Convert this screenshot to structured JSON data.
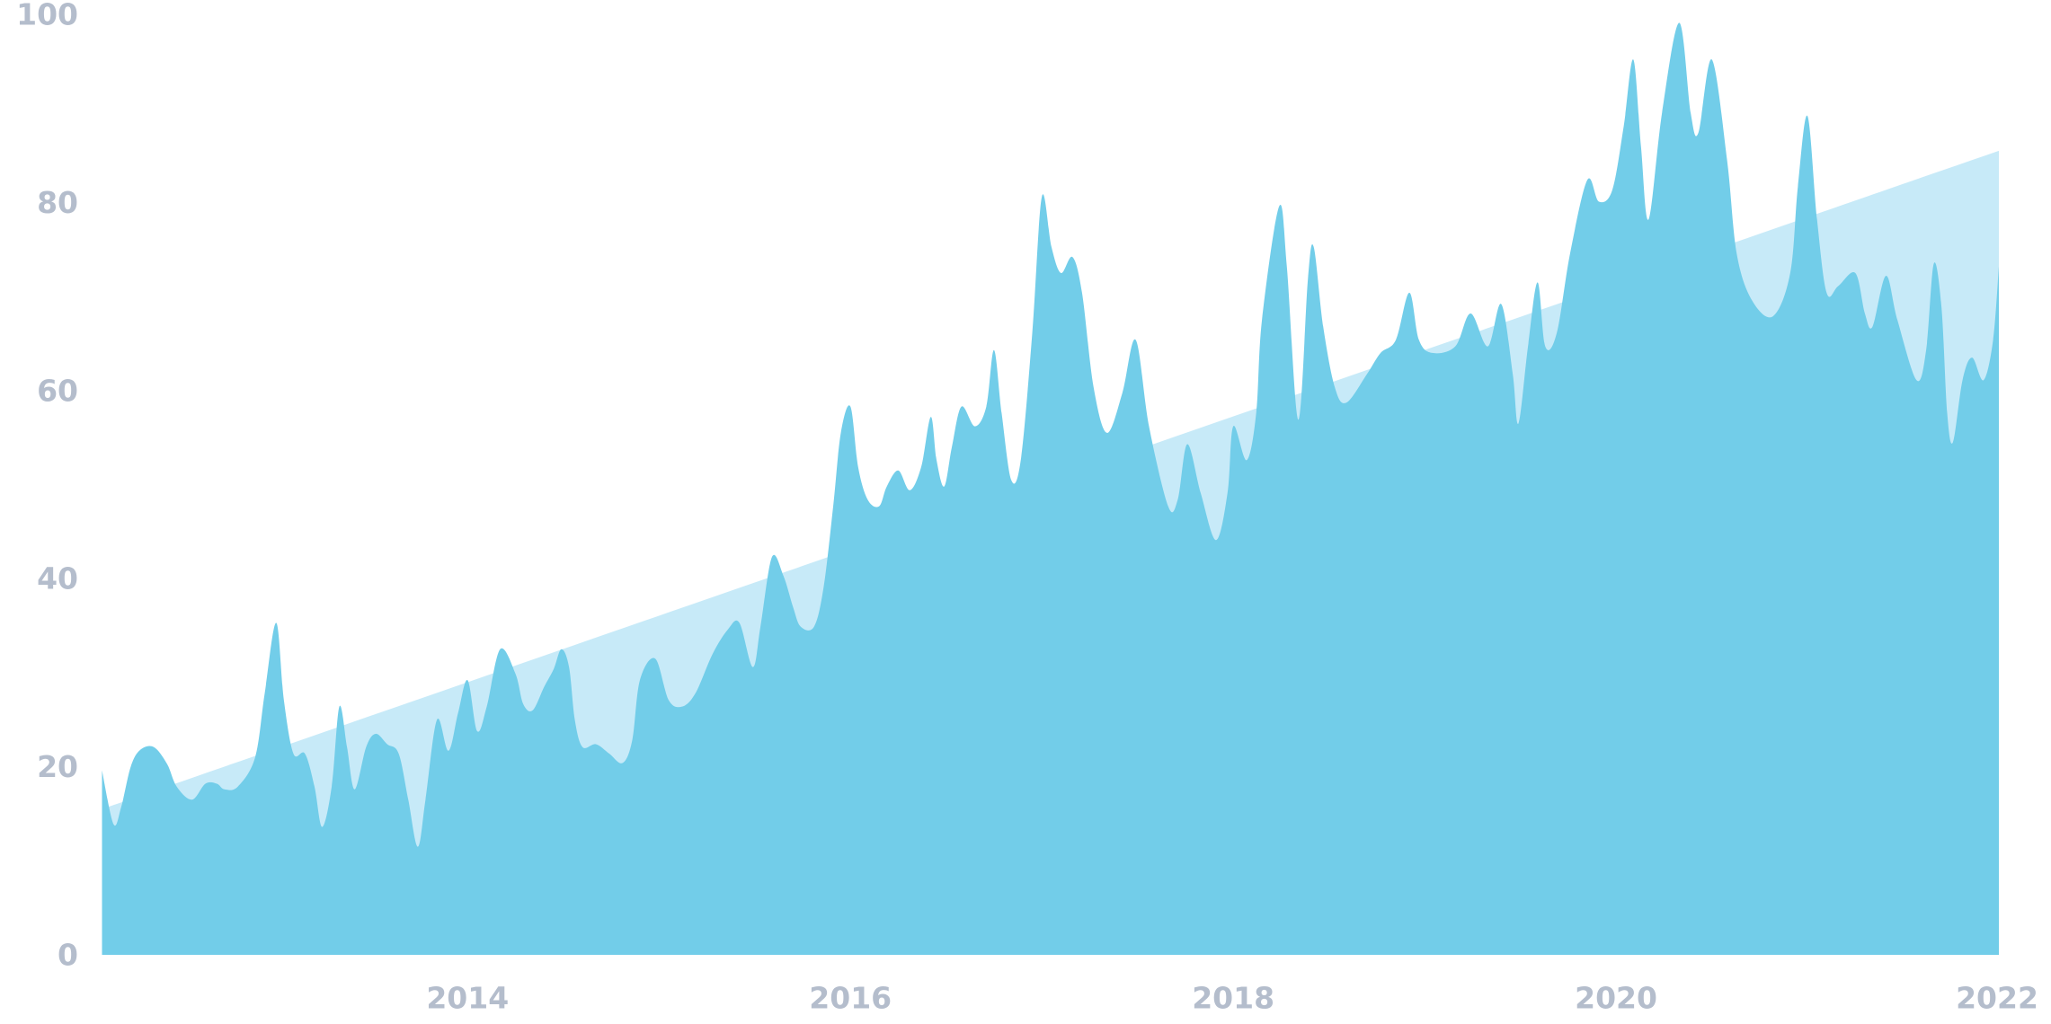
{
  "chart_data": {
    "type": "area",
    "xlim": [
      2012.09,
      2022.0
    ],
    "xticks": [
      2014,
      2016,
      2018,
      2020,
      2022
    ],
    "ylim": [
      0,
      100
    ],
    "yticks": [
      0,
      20,
      40,
      60,
      80,
      100
    ],
    "grid": false,
    "series": [
      {
        "color": "#c7eaf8",
        "x": [
          2012.09,
          2022.0
        ],
        "values": [
          15.5,
          85.5
        ]
      },
      {
        "color": "#72cde9",
        "x": [
          2012.09,
          2012.15,
          2012.19,
          2012.24,
          2012.29,
          2012.36,
          2012.43,
          2012.48,
          2012.56,
          2012.63,
          2012.69,
          2012.73,
          2012.8,
          2012.89,
          2012.94,
          2013.0,
          2013.04,
          2013.09,
          2013.15,
          2013.2,
          2013.24,
          2013.29,
          2013.33,
          2013.37,
          2013.41,
          2013.47,
          2013.52,
          2013.58,
          2013.64,
          2013.69,
          2013.74,
          2013.78,
          2013.84,
          2013.9,
          2013.95,
          2014.0,
          2014.05,
          2014.1,
          2014.17,
          2014.25,
          2014.29,
          2014.34,
          2014.4,
          2014.45,
          2014.49,
          2014.53,
          2014.56,
          2014.6,
          2014.67,
          2014.74,
          2014.81,
          2014.86,
          2014.9,
          2014.98,
          2015.05,
          2015.12,
          2015.19,
          2015.28,
          2015.36,
          2015.42,
          2015.49,
          2015.53,
          2015.59,
          2015.65,
          2015.7,
          2015.74,
          2015.81,
          2015.86,
          2015.91,
          2015.95,
          2016.0,
          2016.04,
          2016.09,
          2016.15,
          2016.19,
          2016.25,
          2016.31,
          2016.37,
          2016.42,
          2016.45,
          2016.49,
          2016.53,
          2016.58,
          2016.65,
          2016.71,
          2016.75,
          2016.79,
          2016.84,
          2016.89,
          2016.95,
          2017.0,
          2017.05,
          2017.1,
          2017.16,
          2017.21,
          2017.27,
          2017.34,
          2017.42,
          2017.49,
          2017.56,
          2017.66,
          2017.71,
          2017.76,
          2017.83,
          2017.91,
          2017.97,
          2018.0,
          2018.07,
          2018.12,
          2018.15,
          2018.24,
          2018.28,
          2018.34,
          2018.39,
          2018.42,
          2018.47,
          2018.53,
          2018.59,
          2018.7,
          2018.77,
          2018.85,
          2018.92,
          2018.97,
          2019.04,
          2019.16,
          2019.24,
          2019.33,
          2019.4,
          2019.46,
          2019.49,
          2019.54,
          2019.59,
          2019.63,
          2019.69,
          2019.76,
          2019.85,
          2019.91,
          2019.98,
          2020.04,
          2020.09,
          2020.13,
          2020.17,
          2020.24,
          2020.33,
          2020.39,
          2020.43,
          2020.5,
          2020.58,
          2020.63,
          2020.71,
          2020.82,
          2020.91,
          2020.95,
          2021.0,
          2021.05,
          2021.1,
          2021.16,
          2021.25,
          2021.3,
          2021.34,
          2021.41,
          2021.47,
          2021.57,
          2021.62,
          2021.66,
          2021.7,
          2021.73,
          2021.76,
          2021.81,
          2021.86,
          2021.92,
          2021.97,
          2022.0
        ],
        "values": [
          19.6,
          13.9,
          15.7,
          20,
          21.8,
          22.1,
          20.3,
          17.9,
          16.5,
          18.2,
          18.2,
          17.6,
          17.9,
          21,
          27.8,
          35.3,
          27.1,
          21.4,
          21.4,
          17.9,
          13.6,
          17.9,
          26.4,
          22.1,
          17.6,
          22.1,
          23.5,
          22.4,
          21.4,
          16.5,
          11.5,
          16.5,
          25,
          21.7,
          25.7,
          29.2,
          23.8,
          26.4,
          32.5,
          29.9,
          26.7,
          26,
          28.5,
          30.4,
          32.5,
          30.6,
          25,
          22.1,
          22.4,
          21.4,
          20.4,
          22.8,
          29.2,
          31.5,
          27.1,
          26.4,
          27.8,
          32,
          34.6,
          35.3,
          30.6,
          34.9,
          42.3,
          40.3,
          37,
          34.9,
          34.9,
          39.1,
          47.7,
          55.5,
          58.3,
          51.9,
          48.4,
          47.7,
          49.8,
          51.5,
          49.4,
          51.9,
          57.2,
          52.6,
          49.8,
          54,
          58.3,
          56.2,
          58.3,
          64.3,
          57.6,
          50.5,
          52.6,
          66.1,
          80.6,
          75.3,
          72.5,
          74.2,
          70.4,
          60.4,
          55.5,
          59.7,
          65.4,
          56.2,
          47.7,
          48.4,
          54.3,
          49.1,
          44.1,
          49.1,
          56.2,
          52.6,
          57.6,
          67.5,
          79.6,
          73.2,
          56.9,
          71.8,
          75.3,
          66.8,
          60.4,
          58.7,
          61.8,
          64,
          65.4,
          70.4,
          65.4,
          64,
          64.7,
          68.2,
          64.7,
          69.2,
          61.8,
          56.5,
          64.7,
          71.5,
          64.7,
          66.1,
          74.6,
          82.4,
          80.1,
          81.3,
          88.1,
          95.2,
          86,
          78.2,
          89.5,
          99.1,
          89.5,
          87.4,
          95.2,
          84.5,
          74.6,
          69.6,
          67.9,
          72.5,
          81.7,
          89.2,
          78.2,
          70.4,
          71.1,
          72.5,
          68.2,
          66.8,
          72.2,
          67.5,
          61.1,
          64.3,
          73.5,
          68.9,
          57.6,
          54.5,
          61.1,
          63.5,
          61.1,
          65.4,
          73.2
        ]
      }
    ]
  }
}
